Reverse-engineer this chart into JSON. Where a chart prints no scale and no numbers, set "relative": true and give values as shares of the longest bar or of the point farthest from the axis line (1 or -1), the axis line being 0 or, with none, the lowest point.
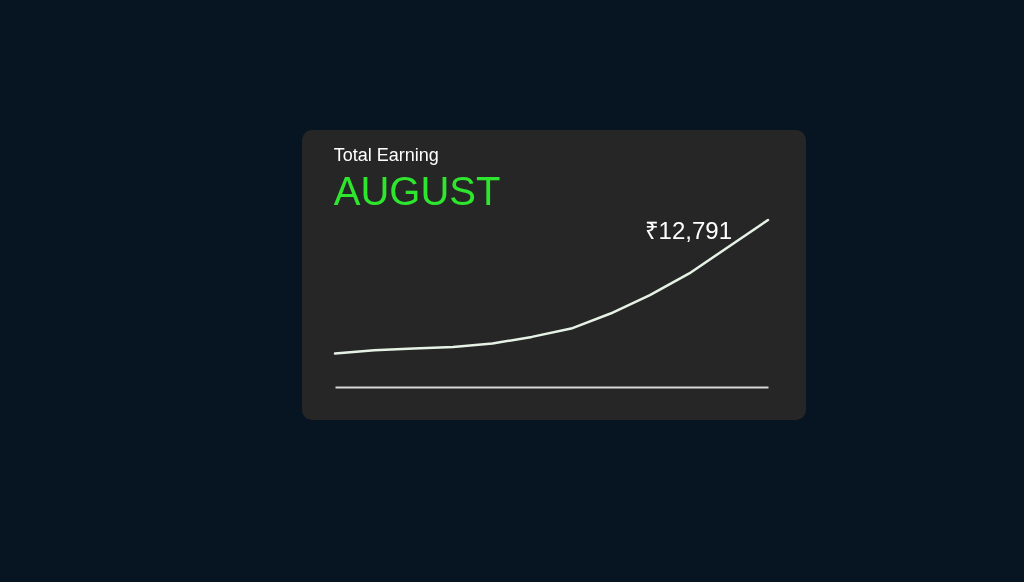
{
  "chart_data": {
    "type": "line",
    "title": "Total Earning",
    "subtitle": "AUGUST",
    "relative": true,
    "categories": [
      null,
      null,
      null,
      null,
      null,
      null,
      null,
      null,
      null,
      null,
      null,
      null
    ],
    "values": [
      0.2,
      0.22,
      0.23,
      0.24,
      0.26,
      0.3,
      0.35,
      0.44,
      0.55,
      0.68,
      0.84,
      1
    ],
    "color": "#e6f2e6",
    "annotations": [
      "₹12,791"
    ]
  }
}
